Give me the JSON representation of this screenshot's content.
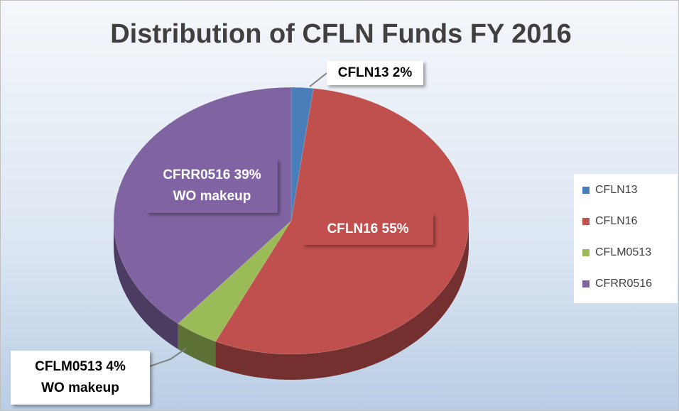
{
  "chart_data": {
    "type": "pie",
    "title": "Distribution of CFLN Funds FY 2016",
    "categories": [
      "CFLN13",
      "CFLN16",
      "CFLM0513",
      "CFRR0516"
    ],
    "values": [
      2,
      55,
      4,
      39
    ],
    "value_labels": [
      [
        "CFLN13 2%"
      ],
      [
        "CFLN16  55%"
      ],
      [
        "CFLM0513 4%",
        "WO makeup"
      ],
      [
        "CFRR0516 39%",
        "WO makeup"
      ]
    ],
    "colors": [
      "#4a7ebb",
      "#c0504d",
      "#9bbb59",
      "#8064a2"
    ],
    "legend": "right"
  }
}
